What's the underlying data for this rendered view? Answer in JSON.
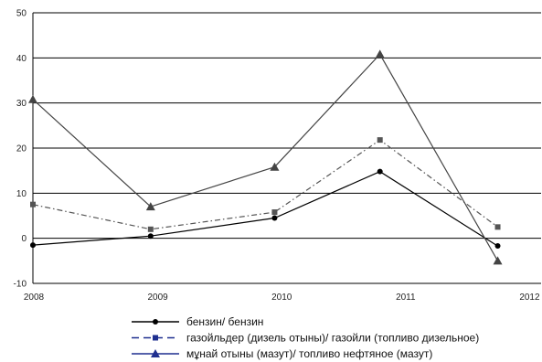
{
  "chart_data": {
    "type": "line",
    "title": "",
    "xlabel": "",
    "ylabel": "",
    "x_ticks": [
      "2008",
      "2009",
      "2010",
      "2011",
      "2012"
    ],
    "y_ticks": [
      "50",
      "40",
      "30",
      "20",
      "10",
      "0",
      "-10"
    ],
    "ylim": [
      -10,
      50
    ],
    "grid": "horizontal",
    "legend_position": "bottom",
    "series": [
      {
        "name": "бензин/ бензин",
        "color": "#000000",
        "marker": "circle",
        "line": "solid",
        "points": [
          {
            "x": 2008.0,
            "y": -1.5
          },
          {
            "x": 2008.95,
            "y": 0.5
          },
          {
            "x": 2009.95,
            "y": 4.5
          },
          {
            "x": 2010.8,
            "y": 14.8
          },
          {
            "x": 2011.75,
            "y": -1.7
          }
        ]
      },
      {
        "name": "газойльдер (дизель отыны)/ газойли (топливо дизельное)",
        "color": "#555555",
        "marker": "square",
        "line": "dash-dot",
        "points": [
          {
            "x": 2008.0,
            "y": 7.5
          },
          {
            "x": 2008.95,
            "y": 2.0
          },
          {
            "x": 2009.95,
            "y": 5.8
          },
          {
            "x": 2010.8,
            "y": 21.8
          },
          {
            "x": 2011.75,
            "y": 2.5
          }
        ]
      },
      {
        "name": "мұнай отыны (мазут)/ топливо нефтяное (мазут)",
        "color": "#444444",
        "marker": "triangle",
        "line": "solid",
        "points": [
          {
            "x": 2008.0,
            "y": 30.8
          },
          {
            "x": 2008.95,
            "y": 7.0
          },
          {
            "x": 2009.95,
            "y": 15.8
          },
          {
            "x": 2010.8,
            "y": 40.8
          },
          {
            "x": 2011.75,
            "y": -5.0
          }
        ]
      }
    ]
  },
  "legend": {
    "items": [
      {
        "label": "бензин/ бензин",
        "line_color": "#000000",
        "marker_color": "#000000"
      },
      {
        "label": "газойльдер (дизель отыны)/ газойли (топливо дизельное)",
        "line_color": "#1f2f8f",
        "marker_color": "#1f2f8f"
      },
      {
        "label": "мұнай отыны (мазут)/ топливо нефтяное (мазут)",
        "line_color": "#1f2f8f",
        "marker_color": "#1f2f8f"
      }
    ]
  }
}
